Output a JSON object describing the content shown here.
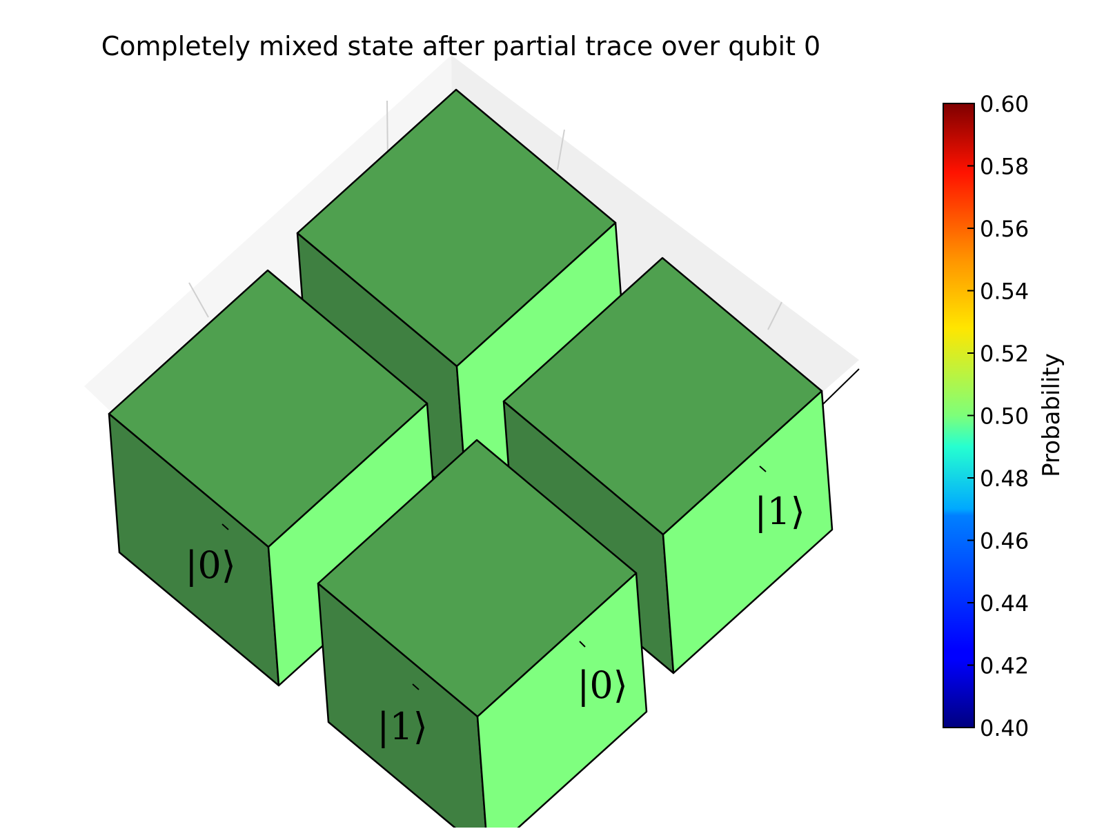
{
  "chart_data": {
    "type": "bar3d",
    "title": "Completely mixed state after partial trace over qubit 0",
    "x_ticklabels": [
      "|0⟩",
      "|1⟩"
    ],
    "y_ticklabels": [
      "|0⟩",
      "|1⟩"
    ],
    "bars": [
      {
        "row": 0,
        "col": 0,
        "value": 0.5
      },
      {
        "row": 0,
        "col": 1,
        "value": 0.5
      },
      {
        "row": 1,
        "col": 0,
        "value": 0.5
      },
      {
        "row": 1,
        "col": 1,
        "value": 0.5
      }
    ],
    "colorbar": {
      "label": "Probability",
      "range": [
        0.4,
        0.6
      ],
      "ticks": [
        "0.40",
        "0.42",
        "0.44",
        "0.46",
        "0.48",
        "0.50",
        "0.52",
        "0.54",
        "0.56",
        "0.58",
        "0.60"
      ],
      "colormap": "jet"
    },
    "colors": {
      "bar_top": "#4fa04f",
      "bar_side_dark": "#3f8041",
      "bar_side_light": "#7fff7f",
      "pane": "#f2f2f2"
    }
  }
}
